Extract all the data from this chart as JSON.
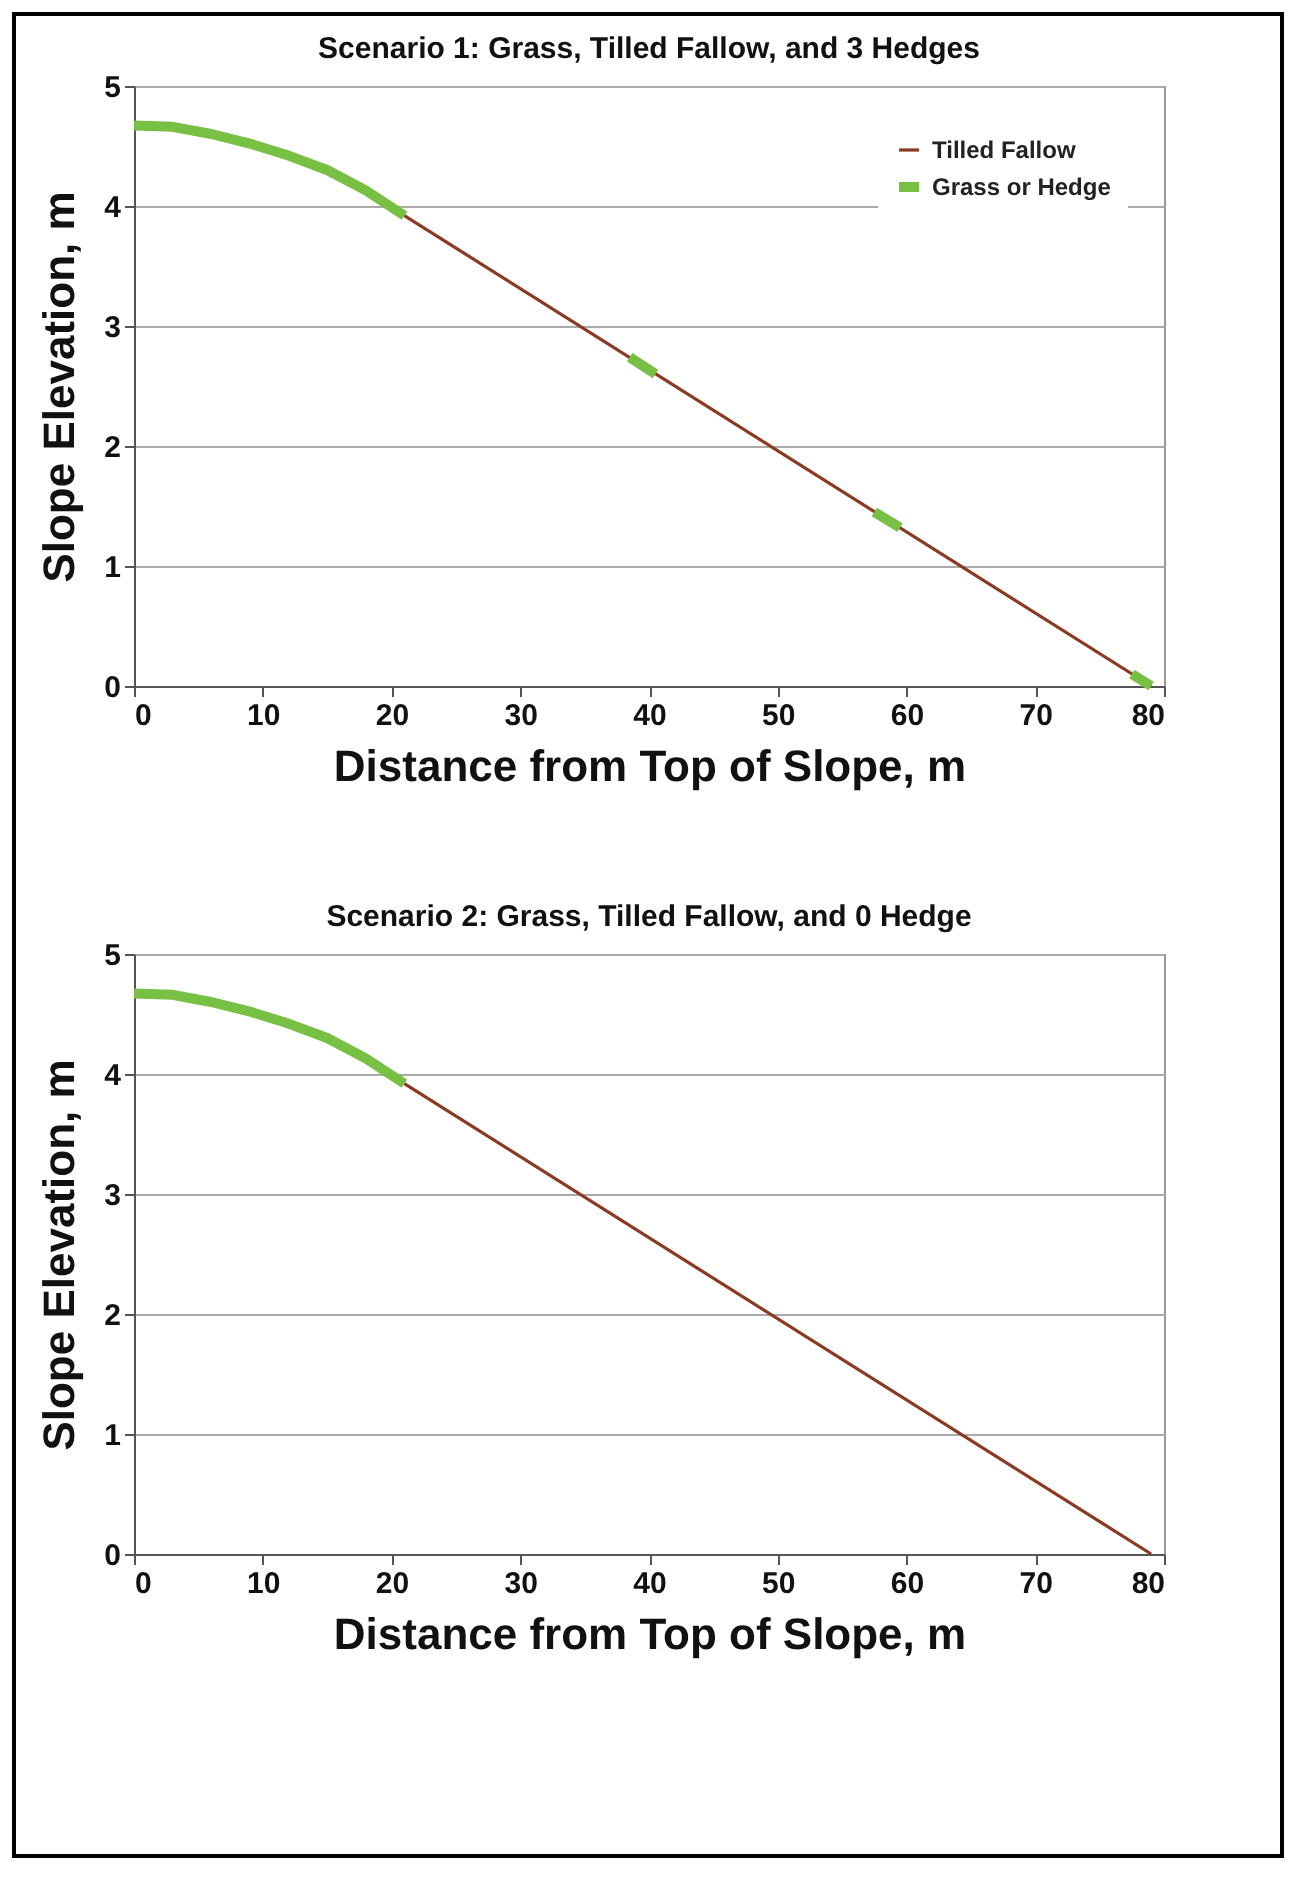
{
  "chart_data": [
    {
      "type": "line",
      "title": "Scenario 1: Grass, Tilled Fallow, and 3 Hedges",
      "xlabel": "Distance from Top of Slope, m",
      "ylabel": "Slope Elevation, m",
      "xlim": [
        0,
        80
      ],
      "ylim": [
        0,
        5
      ],
      "xticks": [
        0,
        10,
        20,
        30,
        40,
        50,
        60,
        70,
        80
      ],
      "yticks": [
        0,
        1,
        2,
        3,
        4,
        5
      ],
      "grid": "y",
      "legend": "top right",
      "series": [
        {
          "name": "Tilled Fallow",
          "color": "#8b3a22",
          "x": [
            21,
            79
          ],
          "values": [
            3.92,
            0
          ]
        },
        {
          "name": "Grass or Hedge",
          "color": "#77c043",
          "x": [
            0,
            3,
            6,
            9,
            12,
            15,
            18,
            21,
            30,
            38.5,
            40.5,
            50,
            57.5,
            59.5,
            70,
            77.5,
            79
          ],
          "values": [
            4.67,
            4.66,
            4.6,
            4.52,
            4.42,
            4.3,
            4.13,
            3.92,
            null,
            2.74,
            2.6,
            null,
            1.45,
            1.32,
            null,
            0.1,
            0
          ]
        }
      ]
    },
    {
      "type": "line",
      "title": "Scenario 2: Grass, Tilled Fallow, and 0 Hedge",
      "xlabel": "Distance from Top of Slope, m",
      "ylabel": "Slope Elevation, m",
      "xlim": [
        0,
        80
      ],
      "ylim": [
        0,
        5
      ],
      "xticks": [
        0,
        10,
        20,
        30,
        40,
        50,
        60,
        70,
        80
      ],
      "yticks": [
        0,
        1,
        2,
        3,
        4,
        5
      ],
      "grid": "y",
      "legend": "top right",
      "series": [
        {
          "name": "Tilled Fallow",
          "color": "#8b3a22",
          "x": [
            21,
            79
          ],
          "values": [
            3.92,
            0
          ]
        },
        {
          "name": "Grass or Hedge",
          "color": "#77c043",
          "x": [
            0,
            3,
            6,
            9,
            12,
            15,
            18,
            21
          ],
          "values": [
            4.67,
            4.66,
            4.6,
            4.52,
            4.42,
            4.3,
            4.13,
            3.92
          ]
        }
      ]
    }
  ]
}
